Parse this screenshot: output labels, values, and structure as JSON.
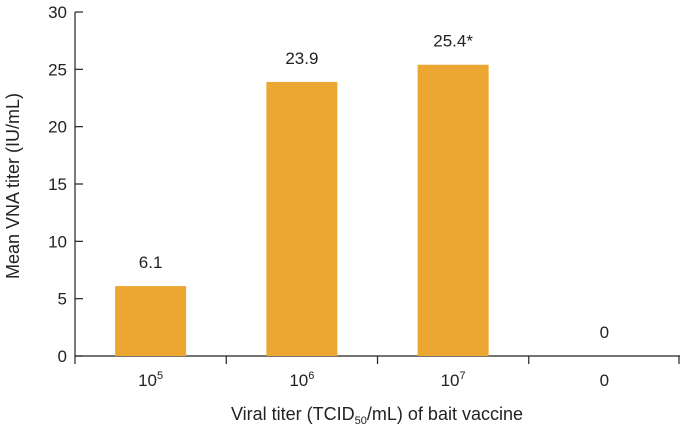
{
  "chart_data": {
    "type": "bar",
    "categories": [
      {
        "base": "10",
        "sup": "5"
      },
      {
        "base": "10",
        "sup": "6"
      },
      {
        "base": "10",
        "sup": "7"
      },
      {
        "base": "0",
        "sup": ""
      }
    ],
    "values": [
      6.1,
      23.9,
      25.4,
      0
    ],
    "data_labels": [
      "6.1",
      "23.9",
      "25.4*",
      "0"
    ],
    "bar_color": "#ECA733",
    "ylim": [
      0,
      30
    ],
    "yticks": [
      0,
      5,
      10,
      15,
      20,
      25,
      30
    ],
    "ylabel": "Mean VNA titer (IU/mL)",
    "xlabel": {
      "pre": "Viral titer (TCID",
      "sub": "50",
      "post": "/mL) of bait vaccine"
    },
    "grid": false,
    "legend": "none"
  }
}
